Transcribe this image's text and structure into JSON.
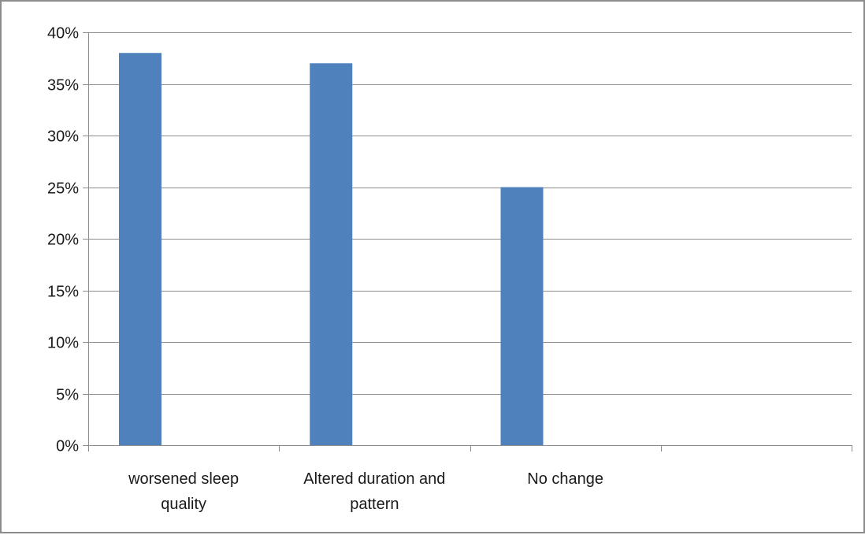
{
  "chart_data": {
    "type": "bar",
    "title": "",
    "xlabel": "",
    "ylabel": "",
    "categories": [
      [
        "worsened sleep",
        "quality"
      ],
      [
        "Altered duration and",
        "pattern"
      ],
      [
        "No change"
      ],
      [
        ""
      ]
    ],
    "values": [
      0.38,
      0.37,
      0.25,
      null
    ],
    "ylim": [
      0,
      0.4
    ],
    "y_ticks": [
      0,
      0.05,
      0.1,
      0.15,
      0.2,
      0.25,
      0.3,
      0.35,
      0.4
    ],
    "y_tick_labels": [
      "0%",
      "5%",
      "10%",
      "15%",
      "20%",
      "25%",
      "30%",
      "35%",
      "40%"
    ],
    "grid": true,
    "legend": "none",
    "bar_color": "#4f81bd",
    "grid_color": "#8c8c8c",
    "axis_color": "#8c8c8c"
  }
}
